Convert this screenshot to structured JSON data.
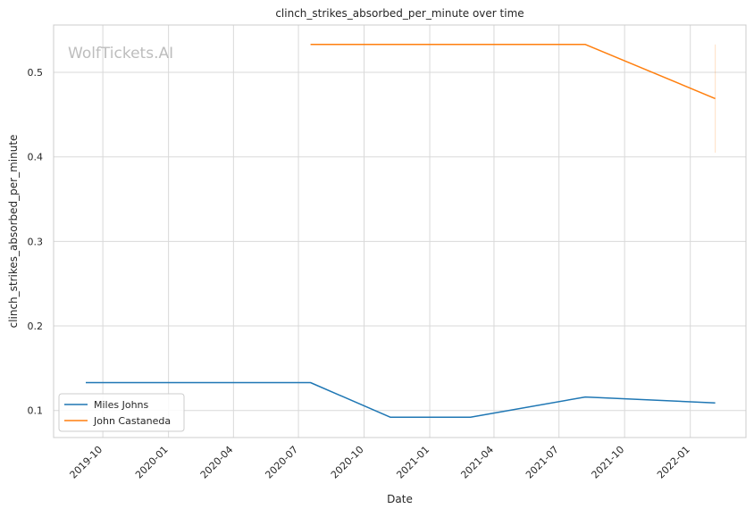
{
  "chart_data": {
    "type": "line",
    "title": "clinch_strikes_absorbed_per_minute over time",
    "xlabel": "Date",
    "ylabel": "clinch_strikes_absorbed_per_minute",
    "watermark": "WolfTickets.AI",
    "x_range": [
      "2019-07-24",
      "2022-03-20"
    ],
    "ylim": [
      0.068,
      0.556
    ],
    "x_ticks": [
      "2019-10",
      "2020-01",
      "2020-04",
      "2020-07",
      "2020-10",
      "2021-01",
      "2021-04",
      "2021-07",
      "2021-10",
      "2022-01"
    ],
    "y_ticks": [
      "0.1",
      "0.2",
      "0.3",
      "0.4",
      "0.5"
    ],
    "grid": true,
    "legend_position": "lower-left",
    "series": [
      {
        "name": "Miles Johns",
        "color": "#1f77b4",
        "points": [
          {
            "x": "2019-09-07",
            "y": 0.133
          },
          {
            "x": "2020-07-18",
            "y": 0.133
          },
          {
            "x": "2020-11-07",
            "y": 0.092
          },
          {
            "x": "2021-02-27",
            "y": 0.092
          },
          {
            "x": "2021-08-07",
            "y": 0.116
          },
          {
            "x": "2022-02-05",
            "y": 0.109
          }
        ]
      },
      {
        "name": "John Castaneda",
        "color": "#ff7f0e",
        "points": [
          {
            "x": "2020-07-18",
            "y": 0.533
          },
          {
            "x": "2021-08-07",
            "y": 0.533
          },
          {
            "x": "2022-02-05",
            "y": 0.469
          }
        ],
        "band": {
          "x": "2022-02-05",
          "low": 0.405,
          "high": 0.533
        }
      }
    ]
  }
}
